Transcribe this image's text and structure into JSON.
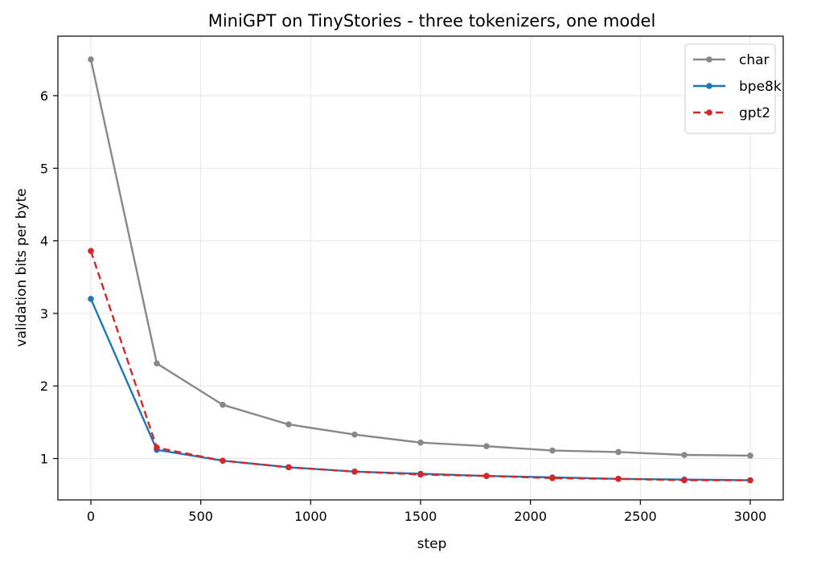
{
  "chart_data": {
    "type": "line",
    "title": "MiniGPT on TinyStories - three tokenizers, one model",
    "xlabel": "step",
    "ylabel": "validation bits per byte",
    "xlim": [
      -150,
      3150
    ],
    "ylim": [
      0.43,
      6.82
    ],
    "xticks": [
      0,
      500,
      1000,
      1500,
      2000,
      2500,
      3000
    ],
    "yticks": [
      1,
      2,
      3,
      4,
      5,
      6
    ],
    "grid": true,
    "legend_position": "top-right",
    "x": [
      0,
      300,
      600,
      900,
      1200,
      1500,
      1800,
      2100,
      2400,
      2700,
      3000
    ],
    "series": [
      {
        "name": "char",
        "color": "#888888",
        "style": "solid",
        "values": [
          6.5,
          2.31,
          1.74,
          1.47,
          1.33,
          1.22,
          1.17,
          1.11,
          1.09,
          1.05,
          1.04
        ]
      },
      {
        "name": "bpe8k",
        "color": "#1f77b4",
        "style": "solid",
        "values": [
          3.2,
          1.12,
          0.97,
          0.88,
          0.82,
          0.79,
          0.76,
          0.74,
          0.72,
          0.71,
          0.7
        ]
      },
      {
        "name": "gpt2",
        "color": "#d62728",
        "style": "dashed",
        "values": [
          3.86,
          1.15,
          0.97,
          0.88,
          0.82,
          0.78,
          0.76,
          0.73,
          0.72,
          0.7,
          0.7
        ]
      }
    ]
  }
}
